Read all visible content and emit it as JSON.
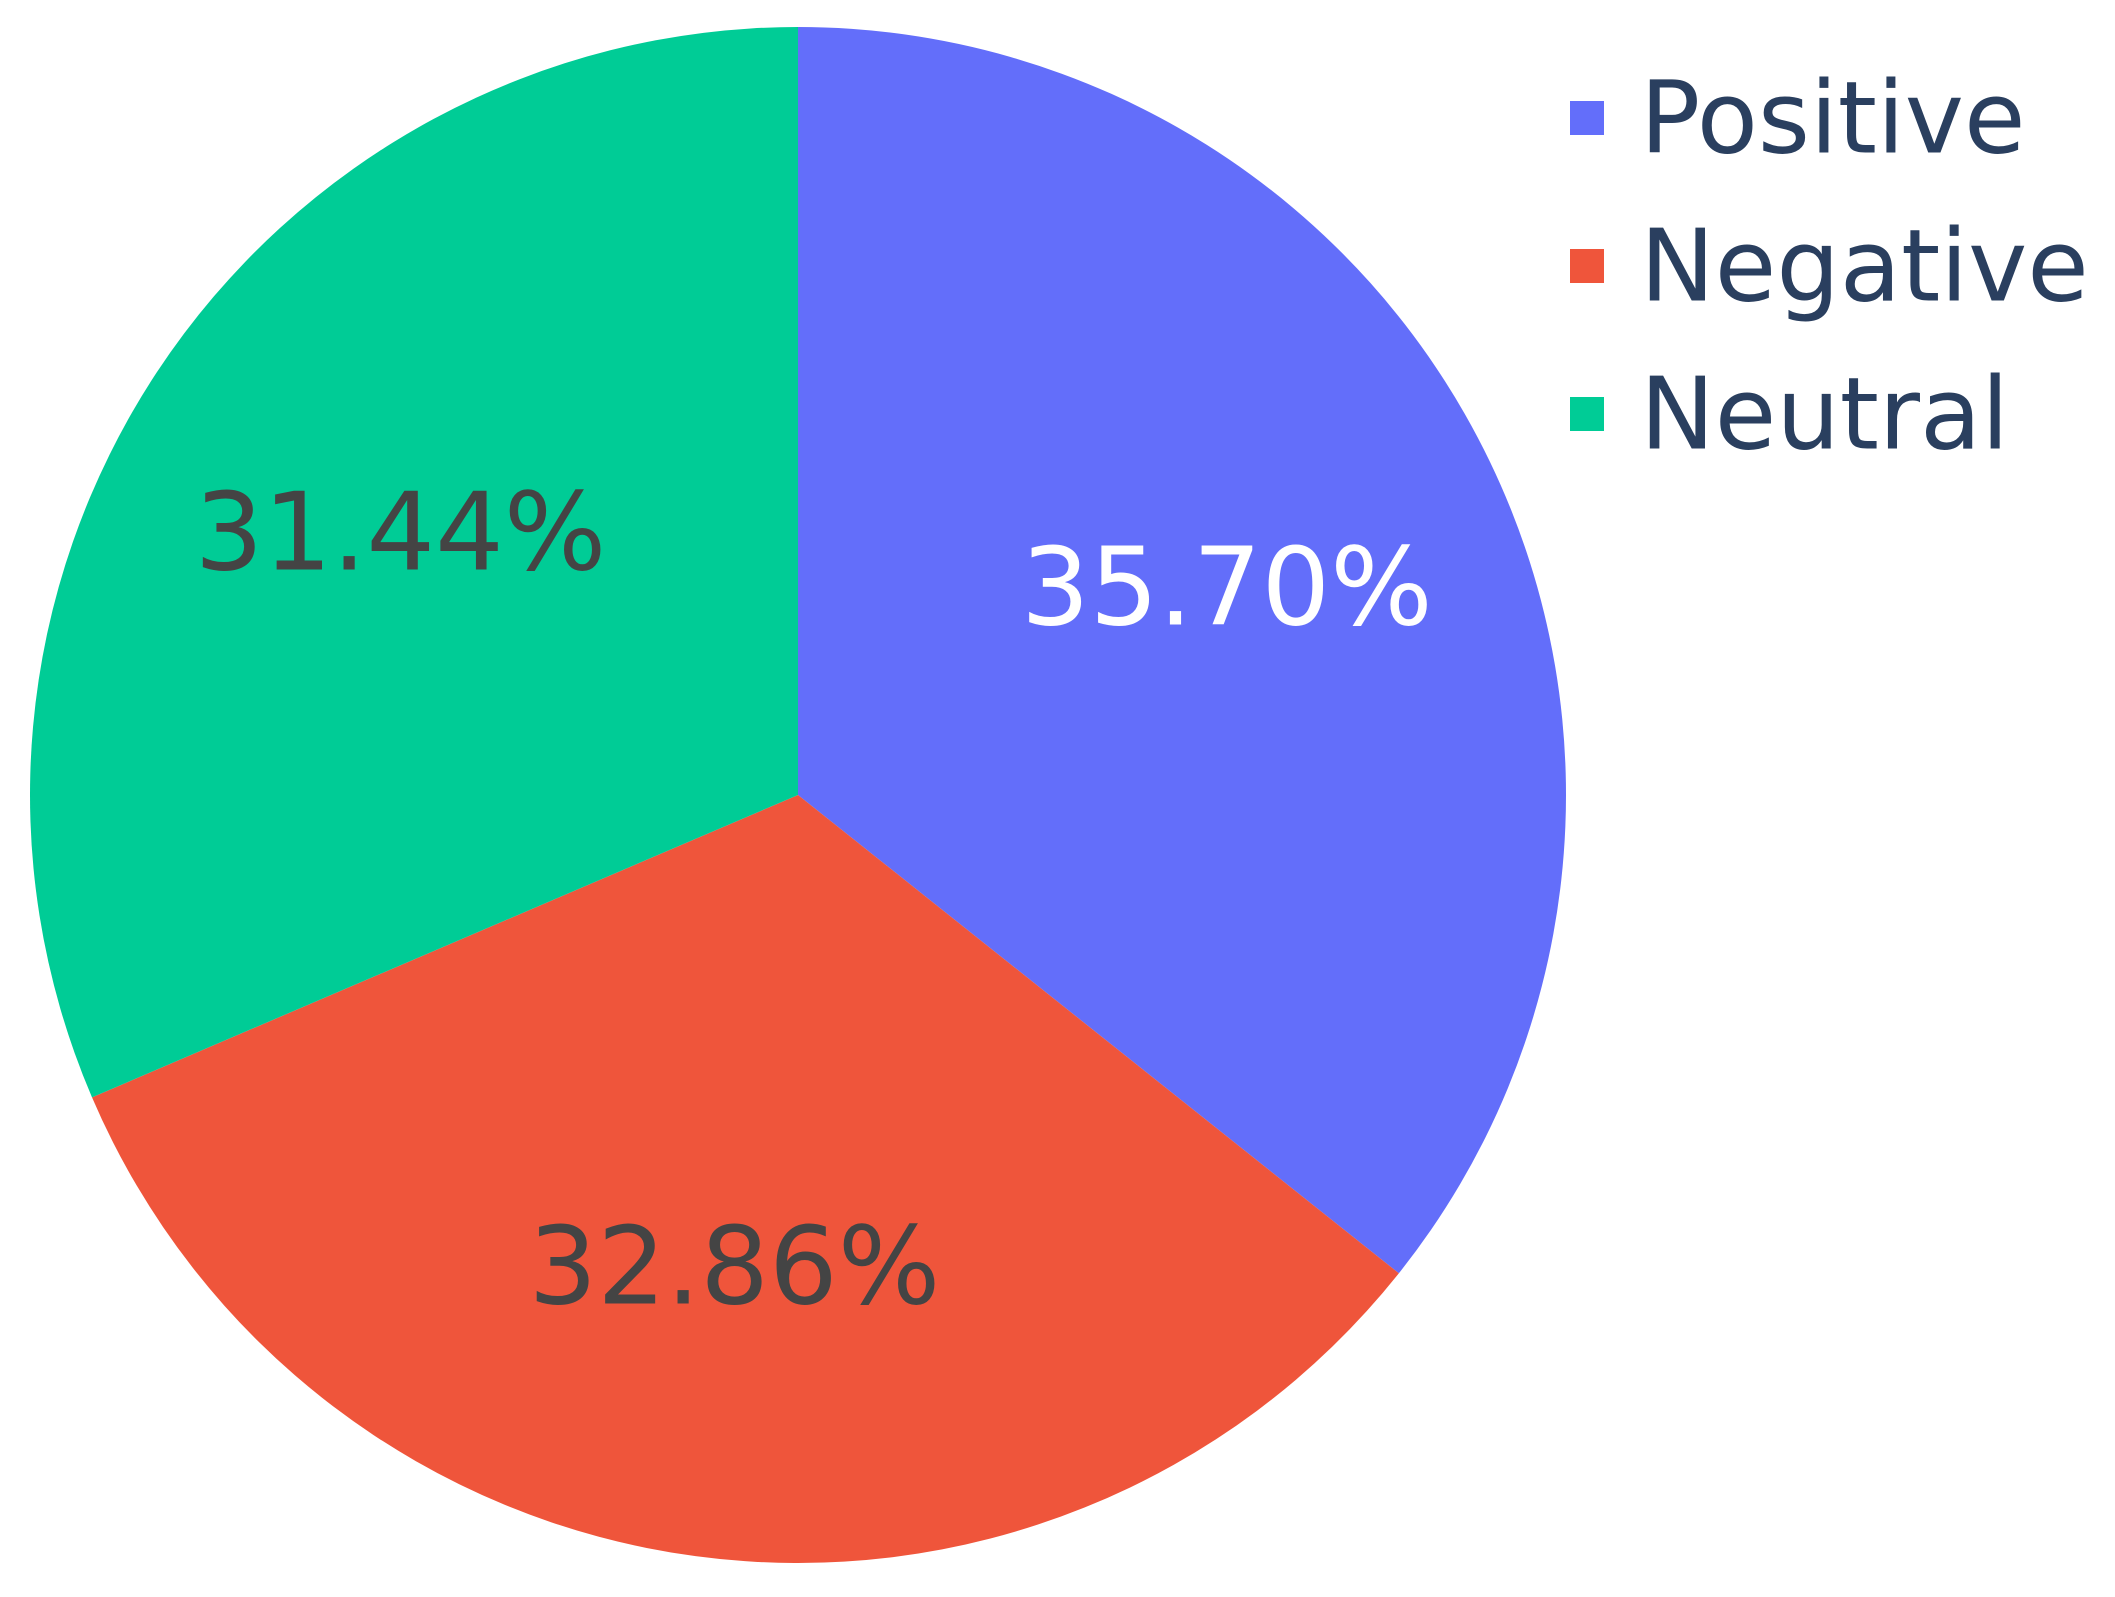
{
  "chart_data": {
    "type": "pie",
    "categories": [
      "Positive",
      "Negative",
      "Neutral"
    ],
    "values": [
      35.7,
      32.86,
      31.44
    ],
    "labels": [
      "35.70%",
      "32.86%",
      "31.44%"
    ],
    "colors": [
      "#636efa",
      "#ef553b",
      "#00cc96"
    ],
    "label_colors": [
      "#ffffff",
      "#444444",
      "#444444"
    ],
    "direction": "clockwise",
    "start_angle": "top",
    "legend_position": "top-right"
  }
}
